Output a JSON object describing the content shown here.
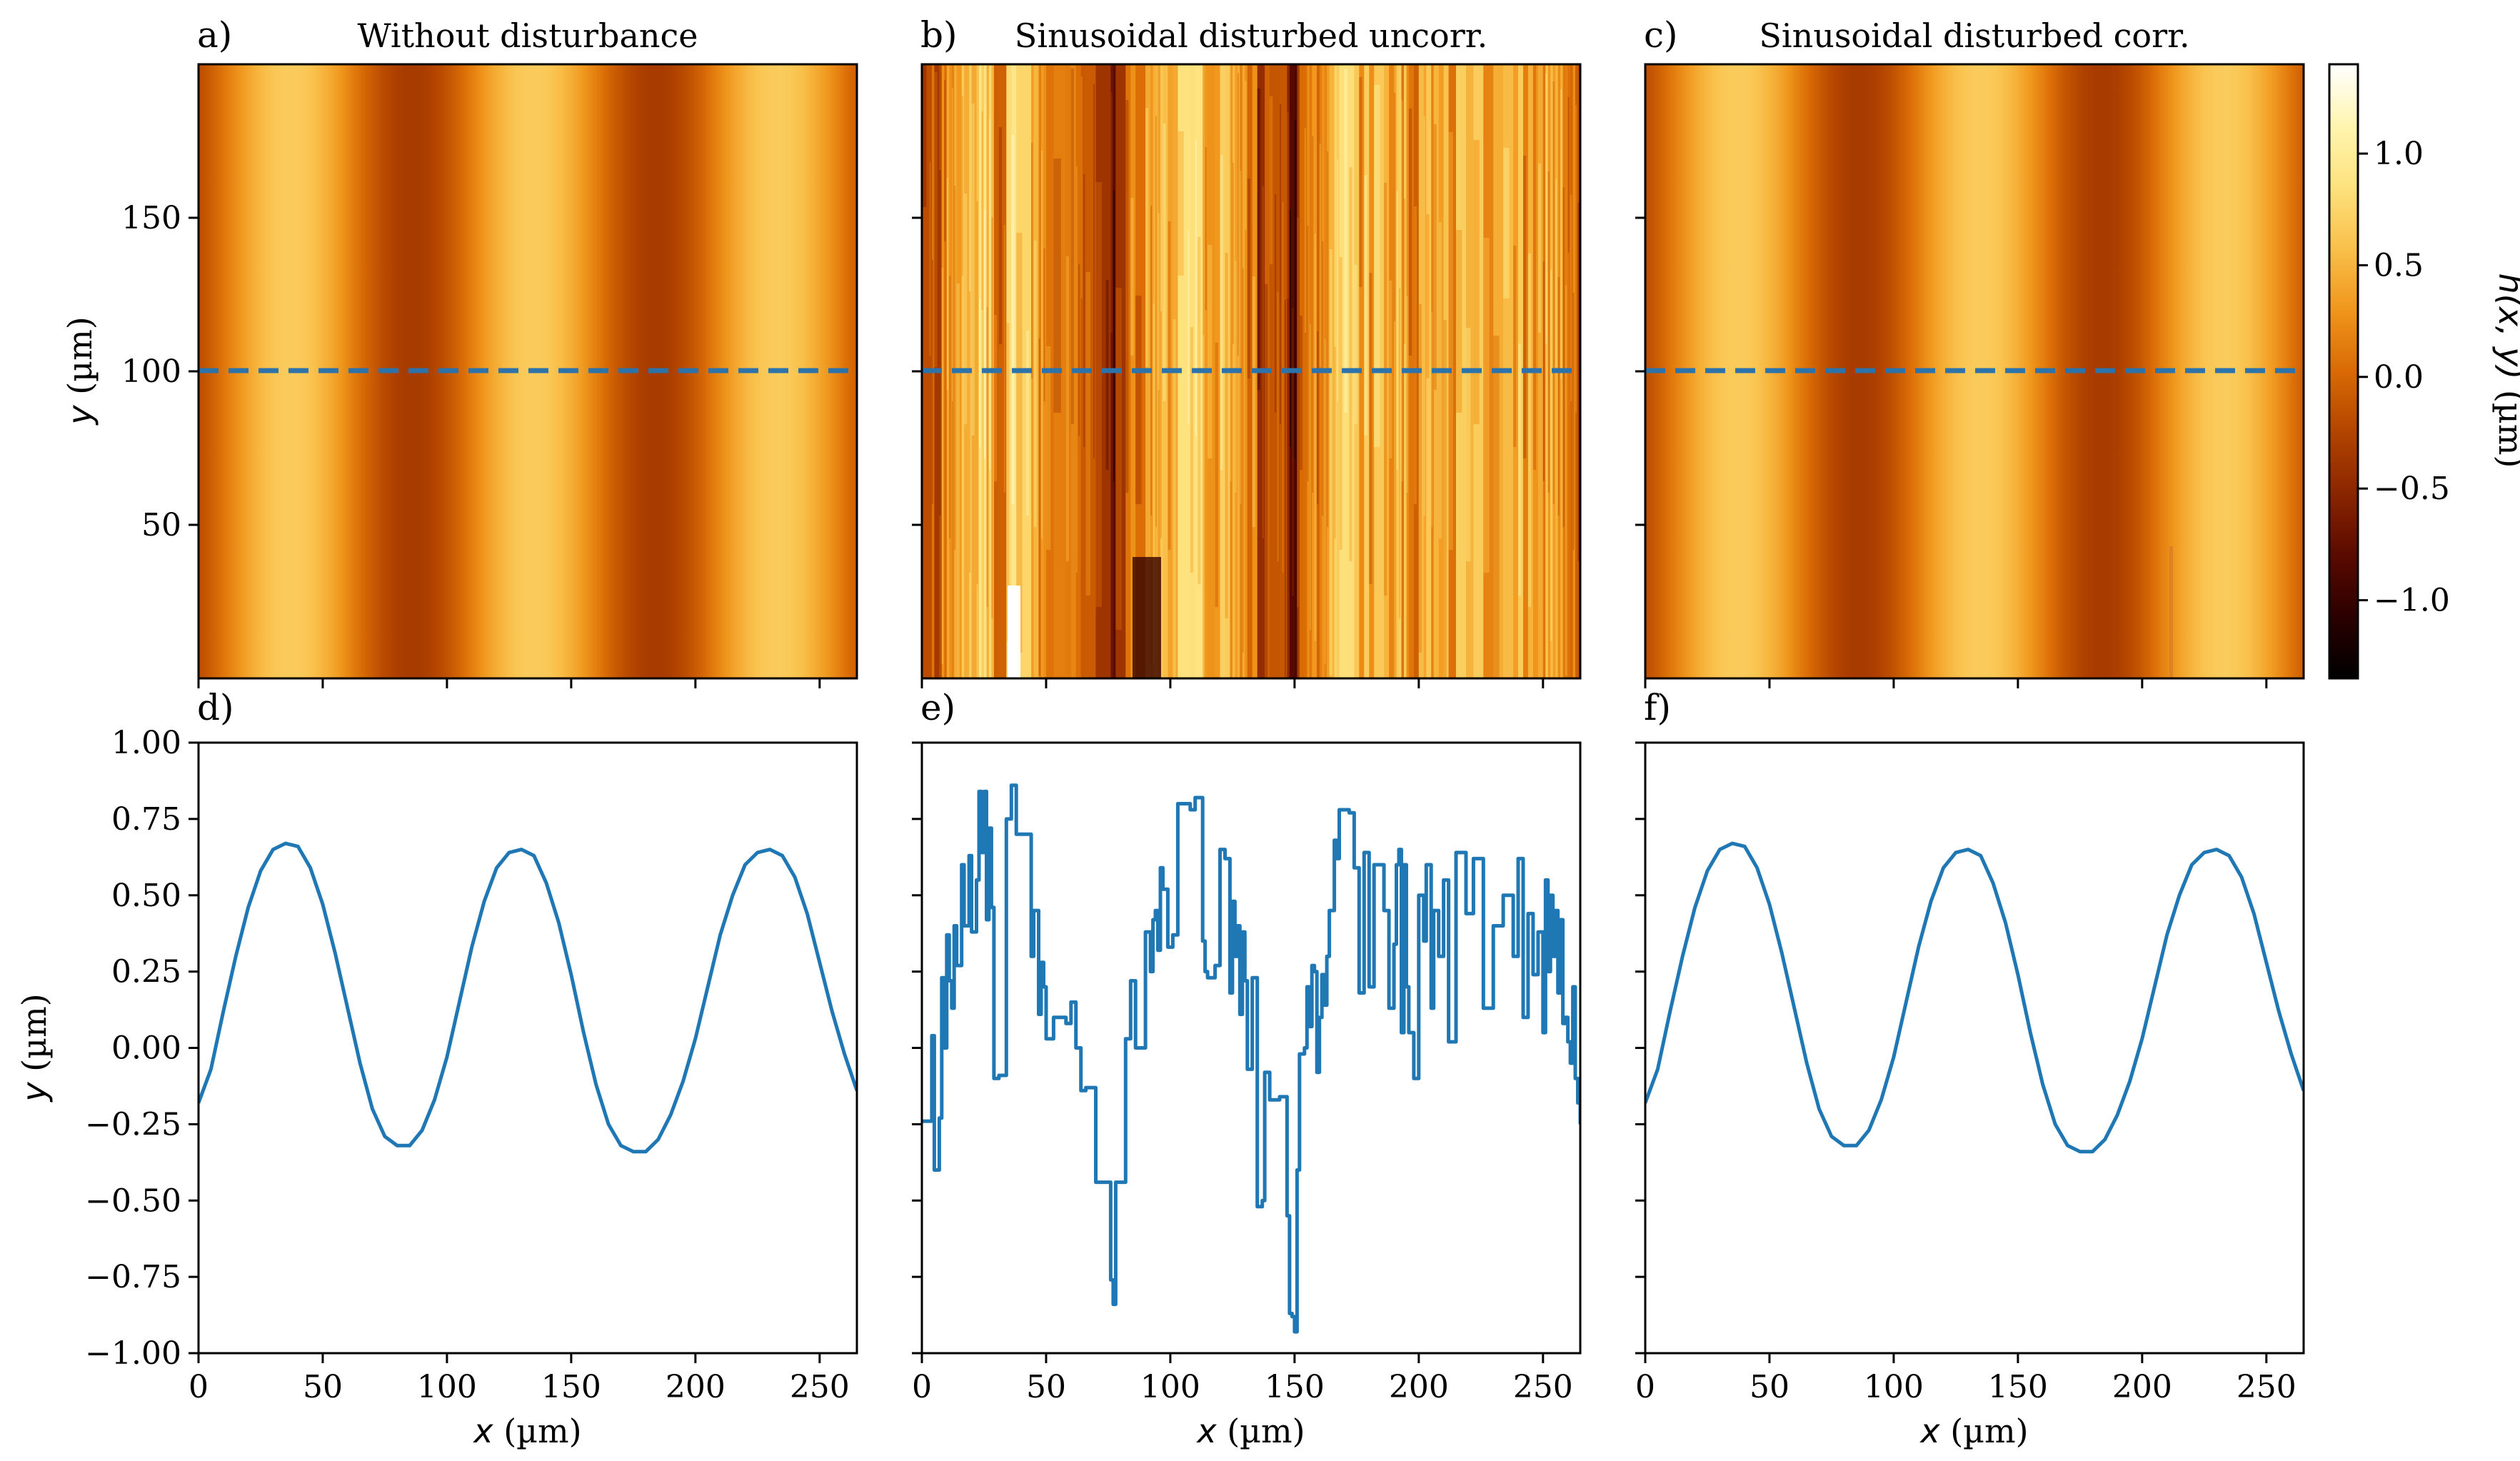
{
  "figure": {
    "colors": {
      "line": "#1f77b4",
      "dash": "#2b73aa",
      "cmap": [
        "#000000",
        "#2b0000",
        "#5a0a00",
        "#8a2500",
        "#b24400",
        "#d96a05",
        "#f0961c",
        "#f9c04a",
        "#fde27e",
        "#fff5b0",
        "#ffffff"
      ]
    }
  },
  "chart_data": [
    {
      "panel": "a",
      "type": "heatmap",
      "label": "a)",
      "title": "Without disturbance",
      "xlim": [
        0,
        265
      ],
      "ylim": [
        0,
        200
      ],
      "ylabel": "y",
      "yunit": " (µm)",
      "yticks": [
        50,
        100,
        150
      ],
      "xticks": [
        0,
        50,
        100,
        150,
        200,
        250
      ],
      "cut_y": 100,
      "field": {
        "period": 98,
        "amp": 0.5,
        "offset": 0.17,
        "phase0": 37
      }
    },
    {
      "panel": "b",
      "type": "heatmap",
      "label": "b)",
      "title": "Sinusoidal disturbed uncorr.",
      "xlim": [
        0,
        265
      ],
      "ylim": [
        0,
        200
      ],
      "yticks": [
        50,
        100,
        150
      ],
      "xticks": [
        0,
        50,
        100,
        150,
        200,
        250
      ],
      "cut_y": 100,
      "disturbed": true
    },
    {
      "panel": "c",
      "type": "heatmap",
      "label": "c)",
      "title": "Sinusoidal disturbed corr.",
      "xlim": [
        0,
        265
      ],
      "ylim": [
        0,
        200
      ],
      "yticks": [
        50,
        100,
        150
      ],
      "xticks": [
        0,
        50,
        100,
        150,
        200,
        250
      ],
      "cut_y": 100,
      "field": {
        "period": 98,
        "amp": 0.5,
        "offset": 0.17,
        "phase0": 37
      }
    },
    {
      "panel": "colorbar",
      "type": "colorbar",
      "vmin": -1.35,
      "vmax": 1.4,
      "ticks": [
        1.0,
        0.5,
        0.0,
        -0.5,
        -1.0
      ],
      "tick_labels": [
        "1.0",
        "0.5",
        "0.0",
        "−0.5",
        "−1.0"
      ],
      "label": "h(x, y)",
      "unit": " (µm)"
    },
    {
      "panel": "d",
      "type": "line",
      "label": "d)",
      "xlim": [
        0,
        265
      ],
      "ylim": [
        -1.0,
        1.0
      ],
      "xlabel": "x",
      "xunit": " (µm)",
      "ylabel": "y",
      "yunit": " (µm)",
      "xticks": [
        0,
        50,
        100,
        150,
        200,
        250
      ],
      "xtick_labels": [
        "0",
        "50",
        "100",
        "150",
        "200",
        "250"
      ],
      "yticks": [
        1.0,
        0.75,
        0.5,
        0.25,
        0.0,
        -0.25,
        -0.5,
        -0.75,
        -1.0
      ],
      "ytick_labels": [
        "1.00",
        "0.75",
        "0.50",
        "0.25",
        "0.00",
        "−0.25",
        "−0.50",
        "−0.75",
        "−1.00"
      ],
      "x": [
        0,
        5,
        10,
        15,
        20,
        25,
        30,
        35,
        40,
        45,
        50,
        55,
        60,
        65,
        70,
        75,
        80,
        85,
        90,
        95,
        100,
        105,
        110,
        115,
        120,
        125,
        130,
        135,
        140,
        145,
        150,
        155,
        160,
        165,
        170,
        175,
        180,
        185,
        190,
        195,
        200,
        205,
        210,
        215,
        220,
        225,
        230,
        235,
        240,
        245,
        250,
        255,
        260,
        265
      ],
      "y": [
        -0.18,
        -0.07,
        0.12,
        0.3,
        0.46,
        0.58,
        0.65,
        0.67,
        0.66,
        0.59,
        0.47,
        0.31,
        0.13,
        -0.05,
        -0.2,
        -0.29,
        -0.32,
        -0.32,
        -0.27,
        -0.17,
        -0.03,
        0.15,
        0.33,
        0.48,
        0.59,
        0.64,
        0.65,
        0.63,
        0.54,
        0.41,
        0.24,
        0.05,
        -0.12,
        -0.25,
        -0.32,
        -0.34,
        -0.34,
        -0.3,
        -0.22,
        -0.11,
        0.03,
        0.2,
        0.37,
        0.5,
        0.6,
        0.64,
        0.65,
        0.63,
        0.56,
        0.44,
        0.28,
        0.12,
        -0.02,
        -0.14
      ]
    },
    {
      "panel": "e",
      "type": "line",
      "label": "e)",
      "xlim": [
        0,
        265
      ],
      "ylim": [
        -1.0,
        1.0
      ],
      "xlabel": "x",
      "xunit": " (µm)",
      "xticks": [
        0,
        50,
        100,
        150,
        200,
        250
      ],
      "xtick_labels": [
        "0",
        "50",
        "100",
        "150",
        "200",
        "250"
      ],
      "yticks": [
        1.0,
        0.75,
        0.5,
        0.25,
        0.0,
        -0.25,
        -0.5,
        -0.75,
        -1.0
      ],
      "x": [
        0,
        3,
        4,
        5,
        7,
        8,
        9,
        10,
        11,
        12,
        13,
        14,
        16,
        17,
        19,
        20,
        22,
        23,
        24,
        25,
        26,
        27,
        28,
        29,
        31,
        33,
        34,
        36,
        38,
        42,
        44,
        45,
        47,
        48,
        49,
        50,
        53,
        58,
        60,
        62,
        63,
        64,
        65,
        66,
        69,
        70,
        74,
        76,
        77,
        78,
        82,
        84,
        86,
        90,
        92,
        93,
        94,
        95,
        96,
        97,
        99,
        101,
        103,
        107,
        108,
        110,
        111,
        113,
        114,
        115,
        118,
        120,
        122,
        124,
        125,
        126,
        127,
        128,
        129,
        130,
        131,
        133,
        135,
        137,
        138,
        140,
        142,
        143,
        144,
        145,
        146,
        147,
        148,
        149,
        150,
        151,
        152,
        154,
        155,
        156,
        157,
        158,
        159,
        160,
        161,
        162,
        163,
        164,
        166,
        167,
        168,
        170,
        172,
        174,
        176,
        178,
        180,
        182,
        186,
        188,
        190,
        191,
        192,
        193,
        194,
        195,
        196,
        198,
        200,
        202,
        203,
        205,
        206,
        208,
        210,
        212,
        215,
        219,
        222,
        226,
        230,
        234,
        238,
        240,
        242,
        244,
        246,
        248,
        250,
        251,
        252,
        253,
        254,
        255,
        256,
        257,
        258,
        259,
        260,
        261,
        262,
        263,
        264,
        265
      ],
      "y": [
        -0.24,
        -0.24,
        0.04,
        -0.4,
        -0.23,
        0.23,
        0.0,
        0.37,
        0.22,
        0.13,
        0.4,
        0.27,
        0.6,
        0.4,
        0.63,
        0.38,
        0.55,
        0.84,
        0.64,
        0.84,
        0.42,
        0.72,
        0.46,
        -0.1,
        -0.09,
        -0.09,
        0.75,
        0.86,
        0.7,
        0.7,
        0.3,
        0.45,
        0.11,
        0.28,
        0.2,
        0.03,
        0.1,
        0.08,
        0.15,
        0.0,
        0.0,
        -0.14,
        -0.14,
        -0.13,
        -0.13,
        -0.44,
        -0.44,
        -0.76,
        -0.84,
        -0.44,
        0.03,
        0.22,
        0.0,
        0.38,
        0.25,
        0.42,
        0.45,
        0.32,
        0.59,
        0.52,
        0.33,
        0.37,
        0.8,
        0.8,
        0.78,
        0.82,
        0.82,
        0.35,
        0.25,
        0.23,
        0.27,
        0.65,
        0.62,
        0.18,
        0.48,
        0.3,
        0.4,
        0.11,
        0.38,
        0.22,
        -0.07,
        0.23,
        -0.52,
        -0.5,
        -0.08,
        -0.17,
        -0.17,
        -0.17,
        -0.16,
        -0.16,
        -0.16,
        -0.55,
        -0.87,
        -0.88,
        -0.93,
        -0.4,
        -0.02,
        0.0,
        0.2,
        0.07,
        0.27,
        0.25,
        -0.08,
        0.1,
        0.24,
        0.14,
        0.3,
        0.45,
        0.68,
        0.62,
        0.78,
        0.78,
        0.77,
        0.59,
        0.18,
        0.64,
        0.2,
        0.6,
        0.45,
        0.13,
        0.34,
        0.6,
        0.65,
        0.05,
        0.6,
        0.2,
        0.05,
        -0.1,
        0.5,
        0.35,
        0.6,
        0.13,
        0.45,
        0.3,
        0.55,
        0.02,
        0.64,
        0.44,
        0.62,
        0.13,
        0.4,
        0.5,
        0.3,
        0.62,
        0.1,
        0.44,
        0.24,
        0.38,
        0.05,
        0.55,
        0.25,
        0.5,
        0.3,
        0.45,
        0.18,
        0.42,
        0.08,
        0.1,
        0.02,
        -0.05,
        0.2,
        -0.1,
        -0.18,
        -0.25
      ]
    },
    {
      "panel": "f",
      "type": "line",
      "label": "f)",
      "xlim": [
        0,
        265
      ],
      "ylim": [
        -1.0,
        1.0
      ],
      "xlabel": "x",
      "xunit": " (µm)",
      "xticks": [
        0,
        50,
        100,
        150,
        200,
        250
      ],
      "xtick_labels": [
        "0",
        "50",
        "100",
        "150",
        "200",
        "250"
      ],
      "yticks": [
        1.0,
        0.75,
        0.5,
        0.25,
        0.0,
        -0.25,
        -0.5,
        -0.75,
        -1.0
      ],
      "x": [
        0,
        5,
        10,
        15,
        20,
        25,
        30,
        35,
        40,
        45,
        50,
        55,
        60,
        65,
        70,
        75,
        80,
        85,
        90,
        95,
        100,
        105,
        110,
        115,
        120,
        125,
        130,
        135,
        140,
        145,
        150,
        155,
        160,
        165,
        170,
        175,
        180,
        185,
        190,
        195,
        200,
        205,
        210,
        215,
        220,
        225,
        230,
        235,
        240,
        245,
        250,
        255,
        260,
        265
      ],
      "y": [
        -0.18,
        -0.07,
        0.12,
        0.3,
        0.46,
        0.58,
        0.65,
        0.67,
        0.66,
        0.59,
        0.47,
        0.31,
        0.13,
        -0.05,
        -0.2,
        -0.29,
        -0.32,
        -0.32,
        -0.27,
        -0.17,
        -0.03,
        0.15,
        0.33,
        0.48,
        0.59,
        0.64,
        0.65,
        0.63,
        0.54,
        0.41,
        0.24,
        0.05,
        -0.12,
        -0.25,
        -0.32,
        -0.34,
        -0.34,
        -0.3,
        -0.22,
        -0.11,
        0.03,
        0.2,
        0.37,
        0.5,
        0.6,
        0.64,
        0.65,
        0.63,
        0.56,
        0.44,
        0.28,
        0.12,
        -0.02,
        -0.14
      ]
    }
  ]
}
